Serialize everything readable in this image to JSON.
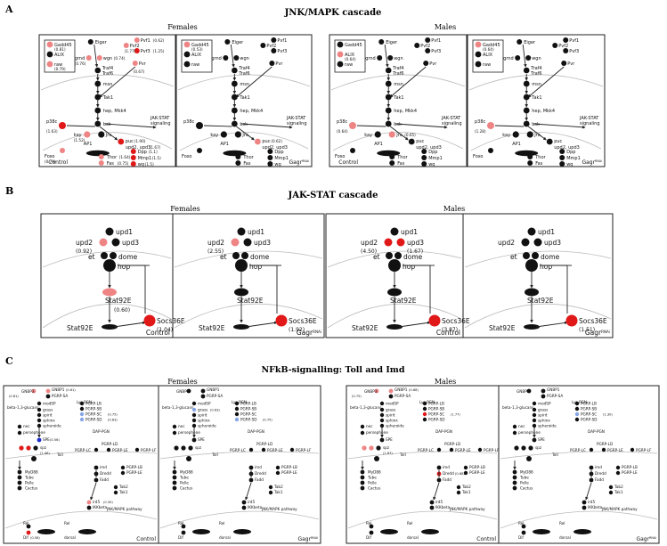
{
  "colors": {
    "red": "#e01818",
    "pink": "#ee8484",
    "blue": "#1a2cd6",
    "lightblue": "#86a6e8",
    "black": "#111111"
  },
  "sectionA": {
    "letter": "A",
    "title": "JNK/MAPK cascade",
    "females": "Females",
    "males": "Males",
    "nodes": {
      "eiger": "Eiger",
      "pvf1": "Pvf1",
      "pvf2": "Pvf2",
      "pvf3": "Pvf3",
      "grnd": "grnd",
      "wgn": "wgn",
      "traf4": "Traf4",
      "traf6": "Traf6",
      "pvr": "Pvr",
      "msn": "msn",
      "tak1": "Tak1",
      "hep": "hep, Mkk4",
      "bsk": "bsk",
      "p38c": "p38c",
      "kay": "kay",
      "jra": "Jra",
      "puc": "puc",
      "upd": "upd2, upd3",
      "jakstat": "JAK-STAT signaling",
      "ap1": "AP1",
      "foxo": "Foxo",
      "thor": "Thor",
      "fas": "Fas",
      "dpp": "Dpp",
      "mmp1": "Mmp1",
      "wg": "wg"
    },
    "legend": {
      "gadd45": "Gadd45",
      "alix": "ALIX",
      "raw": "raw"
    },
    "panels": [
      {
        "cond": "Control",
        "legend_values": {
          "gadd45": "(0.81)",
          "alix": "",
          "raw": "(0.79)"
        },
        "values": {
          "pvf1": "(0.62)",
          "pvf2": "(1.77)",
          "pvf3": "(1.25)",
          "grnd": "(0.76)",
          "wgn": "(0.74)",
          "pvr": "(0.67)",
          "p38c": "(1.63)",
          "kay": "(1.52)",
          "puc": "(1.90)",
          "upd": "(1.67)",
          "foxo": "(0.79)",
          "thor": "(1.64)",
          "fas": "(0.75)",
          "dpp": "(1.1)",
          "mmp1": "(1.5)",
          "wg": "(1.5)"
        }
      },
      {
        "cond": "Gagr",
        "sup": "RNAi",
        "legend_values": {
          "gadd45": "(0.53)",
          "alix": "",
          "raw": ""
        },
        "values": {
          "puc": "(0.62)"
        }
      },
      {
        "cond": "Control",
        "legend_values": {
          "gadd45": "",
          "alix": "(0.64)",
          "raw": ""
        },
        "values": {
          "p38c": "(0.64)",
          "jra": "(0.65)"
        }
      },
      {
        "cond": "Gagr",
        "sup": "RNAi",
        "legend_values": {
          "gadd45": "(0.64)",
          "alix": "",
          "raw": ""
        },
        "values": {
          "p38c": "(1.28)"
        }
      }
    ]
  },
  "sectionB": {
    "letter": "B",
    "title": "JAK-STAT cascade",
    "females": "Females",
    "males": "Males",
    "nodes": {
      "upd1": "upd1",
      "upd2": "upd2",
      "upd3": "upd3",
      "et": "et",
      "dome": "dome",
      "hop": "hop",
      "stat": "Stat92E",
      "stat2": "Stat92E",
      "socs": "Socs36E"
    },
    "panels": [
      {
        "cond": "Control",
        "values": {
          "upd2": "(0.92)",
          "stat": "(0.60)",
          "socs": "(1.04)"
        }
      },
      {
        "cond": "Gagr",
        "sup": "RNAi",
        "values": {
          "upd2": "(2.55)",
          "stat": "",
          "socs": "(1.92)"
        }
      },
      {
        "cond": "Control",
        "values": {
          "upd2": "(4.50)",
          "upd3": "(1.67)",
          "stat": "",
          "socs": "(3.87)"
        }
      },
      {
        "cond": "Gagr",
        "sup": "RNAi",
        "values": {
          "upd2": "",
          "upd3": "",
          "stat": "",
          "socs": "(1.51)"
        }
      }
    ]
  },
  "sectionC": {
    "letter": "C",
    "title": "NFkB-signalling: Toll and Imd",
    "females": "Females",
    "males": "Males",
    "nodes": {
      "gnbp1": "GNBP1",
      "gnbp3": "GNBP3",
      "pgrpsa": "PGRP-SA",
      "lyspgn": "Lys-PGN",
      "beta": "beta-1,3-glucans",
      "modsp": "modSP",
      "grass": "grass",
      "spirit": "spirit",
      "spheroide": "spheroide",
      "sphinx": "sphinx",
      "nec": "nec",
      "persephone": "persephone",
      "spe": "SPE",
      "pgrplb": "PGRP-LB",
      "pgrpsb": "PGRP-SB",
      "pgrpsc": "PGRP-SC",
      "pgrpsd": "PGRP-SD",
      "dappgn": "DAP-PGN",
      "pgrplc": "PGRP-LC",
      "pgrple": "PGRP-LE",
      "pgrpld": "PGRP-LD",
      "pgrplf": "PGRP-LF",
      "spz": "spz",
      "toll": "Toll",
      "myd88": "MyD88",
      "tube": "Tube",
      "pelle": "Pelle",
      "cactus": "Cactus",
      "imd": "imd",
      "dredd": "Dredd",
      "fadd": "Fadd",
      "tab2": "Tab2",
      "tak1": "Tak1",
      "ird5": "ird5",
      "ikkb": "IKKbeta",
      "jnk": "JNK/MAPK pathway",
      "rel": "Rel",
      "dif": "Dif",
      "dorsal": "dorsal"
    },
    "panels": [
      {
        "cond": "Control",
        "values": {
          "gnbp1": "(0.61)",
          "gnbp3": "(0.81)",
          "pgrpsc": "(0.75)",
          "pgrpsd": "(0.83)",
          "spe": "(0.56)",
          "spz": "(1.46)",
          "ird5": "(0.30)",
          "dif": "(0.58)"
        }
      },
      {
        "cond": "Gagr",
        "sup": "RNAi",
        "values": {
          "grass": "(0.63)",
          "pgrpsd": "(0.75)"
        }
      },
      {
        "cond": "Control",
        "values": {
          "gnbp1": "(0.88)",
          "gnbp3": "(0.75)",
          "pgrpsc": "(1.77)",
          "spz": "(1.67)",
          "dredd": "(0.88)"
        }
      },
      {
        "cond": "Gagr",
        "sup": "RNAi",
        "values": {
          "pgrpsc": "(1.30)"
        }
      }
    ]
  }
}
